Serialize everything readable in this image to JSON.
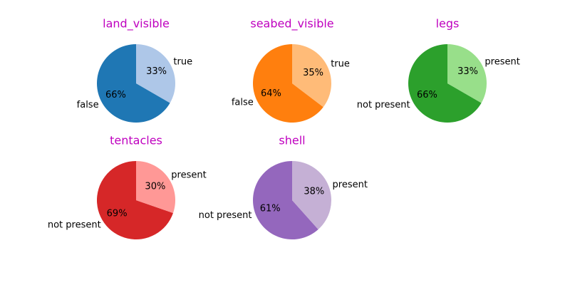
{
  "chart_data": [
    {
      "type": "pie",
      "title": "land_visible",
      "title_color": "#bf00bf",
      "categories": [
        "false",
        "true"
      ],
      "values": [
        66,
        33
      ],
      "value_labels": [
        "66%",
        "33%"
      ],
      "colors": [
        "#1f77b4",
        "#aec7e8"
      ]
    },
    {
      "type": "pie",
      "title": "seabed_visible",
      "title_color": "#bf00bf",
      "categories": [
        "false",
        "true"
      ],
      "values": [
        64,
        35
      ],
      "value_labels": [
        "64%",
        "35%"
      ],
      "colors": [
        "#ff7f0e",
        "#ffbb78"
      ]
    },
    {
      "type": "pie",
      "title": "legs",
      "title_color": "#bf00bf",
      "categories": [
        "not present",
        "present"
      ],
      "values": [
        66,
        33
      ],
      "value_labels": [
        "66%",
        "33%"
      ],
      "colors": [
        "#2ca02c",
        "#98df8a"
      ]
    },
    {
      "type": "pie",
      "title": "tentacles",
      "title_color": "#bf00bf",
      "categories": [
        "not present",
        "present"
      ],
      "values": [
        69,
        30
      ],
      "value_labels": [
        "69%",
        "30%"
      ],
      "colors": [
        "#d62728",
        "#ff9896"
      ]
    },
    {
      "type": "pie",
      "title": "shell",
      "title_color": "#bf00bf",
      "categories": [
        "not present",
        "present"
      ],
      "values": [
        61,
        38
      ],
      "value_labels": [
        "61%",
        "38%"
      ],
      "colors": [
        "#9467bd",
        "#c5b0d5"
      ]
    }
  ]
}
